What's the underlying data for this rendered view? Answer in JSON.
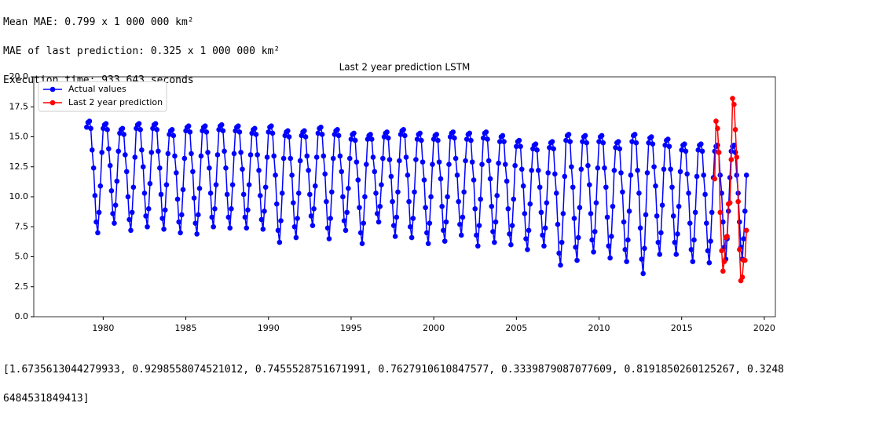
{
  "output_lines": [
    "Mean MAE: 0.799 x 1 000 000 km²",
    "MAE of last prediction: 0.325 x 1 000 000 km²",
    "Execution time: 933.643 seconds"
  ],
  "list_output": [
    "[1.6735613044279933, 0.9298558074521012, 0.7455528751671991, 0.7627910610847577, 0.3339879087077609, 0.8191850260125267, 0.3248",
    "6484531849413]"
  ],
  "chart_data": {
    "type": "line",
    "title": "Last 2 year prediction LSTM",
    "legend": "upper left",
    "grid": false,
    "xlim": [
      1975.8,
      2020.67
    ],
    "xticks": [
      1980,
      1985,
      1990,
      1995,
      2000,
      2005,
      2010,
      2015,
      2020
    ],
    "ylim": [
      0,
      20
    ],
    "yticks": [
      {
        "value": 0,
        "label": "0.0"
      },
      {
        "value": 2.5,
        "label": "2.5"
      },
      {
        "value": 5,
        "label": "5.0"
      },
      {
        "value": 7.5,
        "label": "7.5"
      },
      {
        "value": 10,
        "label": "10.0"
      },
      {
        "value": 12.5,
        "label": "12.5"
      },
      {
        "value": 15,
        "label": "15.0"
      },
      {
        "value": 17.5,
        "label": "17.5"
      },
      {
        "value": 20,
        "label": "20.0"
      }
    ],
    "series": [
      {
        "name": "Actual values",
        "color": "#0000ff",
        "x": [
          1979,
          1979.08,
          1979.17,
          1979.25,
          1979.33,
          1979.42,
          1979.5,
          1979.58,
          1979.67,
          1979.75,
          1979.83,
          1979.92,
          1980,
          1980.08,
          1980.17,
          1980.25,
          1980.33,
          1980.42,
          1980.5,
          1980.58,
          1980.67,
          1980.75,
          1980.83,
          1980.92,
          1981,
          1981.08,
          1981.17,
          1981.25,
          1981.33,
          1981.42,
          1981.5,
          1981.58,
          1981.67,
          1981.75,
          1981.83,
          1981.92,
          1982,
          1982.08,
          1982.17,
          1982.25,
          1982.33,
          1982.42,
          1982.5,
          1982.58,
          1982.67,
          1982.75,
          1982.83,
          1982.92,
          1983,
          1983.08,
          1983.17,
          1983.25,
          1983.33,
          1983.42,
          1983.5,
          1983.58,
          1983.67,
          1983.75,
          1983.83,
          1983.92,
          1984,
          1984.08,
          1984.17,
          1984.25,
          1984.33,
          1984.42,
          1984.5,
          1984.58,
          1984.67,
          1984.75,
          1984.83,
          1984.92,
          1985,
          1985.08,
          1985.17,
          1985.25,
          1985.33,
          1985.42,
          1985.5,
          1985.58,
          1985.67,
          1985.75,
          1985.83,
          1985.92,
          1986,
          1986.08,
          1986.17,
          1986.25,
          1986.33,
          1986.42,
          1986.5,
          1986.58,
          1986.67,
          1986.75,
          1986.83,
          1986.92,
          1987,
          1987.08,
          1987.17,
          1987.25,
          1987.33,
          1987.42,
          1987.5,
          1987.58,
          1987.67,
          1987.75,
          1987.83,
          1987.92,
          1988,
          1988.08,
          1988.17,
          1988.25,
          1988.33,
          1988.42,
          1988.5,
          1988.58,
          1988.67,
          1988.75,
          1988.83,
          1988.92,
          1989,
          1989.08,
          1989.17,
          1989.25,
          1989.33,
          1989.42,
          1989.5,
          1989.58,
          1989.67,
          1989.75,
          1989.83,
          1989.92,
          1990,
          1990.08,
          1990.17,
          1990.25,
          1990.33,
          1990.42,
          1990.5,
          1990.58,
          1990.67,
          1990.75,
          1990.83,
          1990.92,
          1991,
          1991.08,
          1991.17,
          1991.25,
          1991.33,
          1991.42,
          1991.5,
          1991.58,
          1991.67,
          1991.75,
          1991.83,
          1991.92,
          1992,
          1992.08,
          1992.17,
          1992.25,
          1992.33,
          1992.42,
          1992.5,
          1992.58,
          1992.67,
          1992.75,
          1992.83,
          1992.92,
          1993,
          1993.08,
          1993.17,
          1993.25,
          1993.33,
          1993.42,
          1993.5,
          1993.58,
          1993.67,
          1993.75,
          1993.83,
          1993.92,
          1994,
          1994.08,
          1994.17,
          1994.25,
          1994.33,
          1994.42,
          1994.5,
          1994.58,
          1994.67,
          1994.75,
          1994.83,
          1994.92,
          1995,
          1995.08,
          1995.17,
          1995.25,
          1995.33,
          1995.42,
          1995.5,
          1995.58,
          1995.67,
          1995.75,
          1995.83,
          1995.92,
          1996,
          1996.08,
          1996.17,
          1996.25,
          1996.33,
          1996.42,
          1996.5,
          1996.58,
          1996.67,
          1996.75,
          1996.83,
          1996.92,
          1997,
          1997.08,
          1997.17,
          1997.25,
          1997.33,
          1997.42,
          1997.5,
          1997.58,
          1997.67,
          1997.75,
          1997.83,
          1997.92,
          1998,
          1998.08,
          1998.17,
          1998.25,
          1998.33,
          1998.42,
          1998.5,
          1998.58,
          1998.67,
          1998.75,
          1998.83,
          1998.92,
          1999,
          1999.08,
          1999.17,
          1999.25,
          1999.33,
          1999.42,
          1999.5,
          1999.58,
          1999.67,
          1999.75,
          1999.83,
          1999.92,
          2000,
          2000.08,
          2000.17,
          2000.25,
          2000.33,
          2000.42,
          2000.5,
          2000.58,
          2000.67,
          2000.75,
          2000.83,
          2000.92,
          2001,
          2001.08,
          2001.17,
          2001.25,
          2001.33,
          2001.42,
          2001.5,
          2001.58,
          2001.67,
          2001.75,
          2001.83,
          2001.92,
          2002,
          2002.08,
          2002.17,
          2002.25,
          2002.33,
          2002.42,
          2002.5,
          2002.58,
          2002.67,
          2002.75,
          2002.83,
          2002.92,
          2003,
          2003.08,
          2003.17,
          2003.25,
          2003.33,
          2003.42,
          2003.5,
          2003.58,
          2003.67,
          2003.75,
          2003.83,
          2003.92,
          2004,
          2004.08,
          2004.17,
          2004.25,
          2004.33,
          2004.42,
          2004.5,
          2004.58,
          2004.67,
          2004.75,
          2004.83,
          2004.92,
          2005,
          2005.08,
          2005.17,
          2005.25,
          2005.33,
          2005.42,
          2005.5,
          2005.58,
          2005.67,
          2005.75,
          2005.83,
          2005.92,
          2006,
          2006.08,
          2006.17,
          2006.25,
          2006.33,
          2006.42,
          2006.5,
          2006.58,
          2006.67,
          2006.75,
          2006.83,
          2006.92,
          2007,
          2007.08,
          2007.17,
          2007.25,
          2007.33,
          2007.42,
          2007.5,
          2007.58,
          2007.67,
          2007.75,
          2007.83,
          2007.92,
          2008,
          2008.08,
          2008.17,
          2008.25,
          2008.33,
          2008.42,
          2008.5,
          2008.58,
          2008.67,
          2008.75,
          2008.83,
          2008.92,
          2009,
          2009.08,
          2009.17,
          2009.25,
          2009.33,
          2009.42,
          2009.5,
          2009.58,
          2009.67,
          2009.75,
          2009.83,
          2009.92,
          2010,
          2010.08,
          2010.17,
          2010.25,
          2010.33,
          2010.42,
          2010.5,
          2010.58,
          2010.67,
          2010.75,
          2010.83,
          2010.92,
          2011,
          2011.08,
          2011.17,
          2011.25,
          2011.33,
          2011.42,
          2011.5,
          2011.58,
          2011.67,
          2011.75,
          2011.83,
          2011.92,
          2012,
          2012.08,
          2012.17,
          2012.25,
          2012.33,
          2012.42,
          2012.5,
          2012.58,
          2012.67,
          2012.75,
          2012.83,
          2012.92,
          2013,
          2013.08,
          2013.17,
          2013.25,
          2013.33,
          2013.42,
          2013.5,
          2013.58,
          2013.67,
          2013.75,
          2013.83,
          2013.92,
          2014,
          2014.08,
          2014.17,
          2014.25,
          2014.33,
          2014.42,
          2014.5,
          2014.58,
          2014.67,
          2014.75,
          2014.83,
          2014.92,
          2015,
          2015.08,
          2015.17,
          2015.25,
          2015.33,
          2015.42,
          2015.5,
          2015.58,
          2015.67,
          2015.75,
          2015.83,
          2015.92,
          2016,
          2016.08,
          2016.17,
          2016.25,
          2016.33,
          2016.42,
          2016.5,
          2016.58,
          2016.67,
          2016.75,
          2016.83,
          2016.92,
          2017,
          2017.08,
          2017.17,
          2017.25,
          2017.33,
          2017.42,
          2017.5,
          2017.58,
          2017.67,
          2017.75,
          2017.83,
          2017.92,
          2018,
          2018.08,
          2018.17,
          2018.25,
          2018.33,
          2018.42,
          2018.5,
          2018.58,
          2018.67,
          2018.75,
          2018.83,
          2018.92
        ],
        "values": [
          15.8,
          16.2,
          16.3,
          15.7,
          13.9,
          12.4,
          10.1,
          7.9,
          7.0,
          8.7,
          10.9,
          13.7,
          15.7,
          16.0,
          16.1,
          15.6,
          14.0,
          12.6,
          10.5,
          8.6,
          7.8,
          9.3,
          11.3,
          13.8,
          15.3,
          15.6,
          15.7,
          15.2,
          13.5,
          12.1,
          10.0,
          8.1,
          7.2,
          8.7,
          10.8,
          13.3,
          15.7,
          16.0,
          16.1,
          15.6,
          13.9,
          12.5,
          10.3,
          8.4,
          7.5,
          9.0,
          11.1,
          13.7,
          15.7,
          16.0,
          16.1,
          15.6,
          13.8,
          12.4,
          10.2,
          8.2,
          7.3,
          8.9,
          11.0,
          13.6,
          15.2,
          15.5,
          15.6,
          15.1,
          13.4,
          12.0,
          9.8,
          7.9,
          7.0,
          8.5,
          10.6,
          13.2,
          15.5,
          15.8,
          15.9,
          15.4,
          13.6,
          12.1,
          9.9,
          7.8,
          6.9,
          8.5,
          10.7,
          13.4,
          15.5,
          15.8,
          15.9,
          15.4,
          13.7,
          12.4,
          10.3,
          8.3,
          7.5,
          9.0,
          11.0,
          13.5,
          15.6,
          15.9,
          16.0,
          15.5,
          13.8,
          12.4,
          10.2,
          8.3,
          7.4,
          9.0,
          11.0,
          13.6,
          15.5,
          15.8,
          15.9,
          15.4,
          13.7,
          12.3,
          10.2,
          8.3,
          7.4,
          8.9,
          11.0,
          13.5,
          15.3,
          15.6,
          15.7,
          15.2,
          13.5,
          12.2,
          10.1,
          8.1,
          7.3,
          8.8,
          10.8,
          13.3,
          15.4,
          15.8,
          15.9,
          15.3,
          13.4,
          11.8,
          9.4,
          7.2,
          6.2,
          8.0,
          10.3,
          13.2,
          15.1,
          15.4,
          15.5,
          15.0,
          13.2,
          11.8,
          9.5,
          7.5,
          6.6,
          8.2,
          10.3,
          13.0,
          15.1,
          15.4,
          15.5,
          15.0,
          13.4,
          12.2,
          10.2,
          8.4,
          7.6,
          9.0,
          10.9,
          13.3,
          15.3,
          15.7,
          15.8,
          15.2,
          13.4,
          11.9,
          9.6,
          7.4,
          6.5,
          8.2,
          10.4,
          13.2,
          15.2,
          15.5,
          15.6,
          15.1,
          13.4,
          12.1,
          10.0,
          8.0,
          7.2,
          8.7,
          10.7,
          13.2,
          14.8,
          15.2,
          15.3,
          14.7,
          12.9,
          11.4,
          9.1,
          7.0,
          6.1,
          7.8,
          10.0,
          12.7,
          14.8,
          15.1,
          15.2,
          14.8,
          13.3,
          12.1,
          10.3,
          8.6,
          7.9,
          9.2,
          11.0,
          13.2,
          15.0,
          15.3,
          15.4,
          14.9,
          13.1,
          11.7,
          9.6,
          7.6,
          6.7,
          8.3,
          10.4,
          13.0,
          15.2,
          15.5,
          15.6,
          15.1,
          13.3,
          11.8,
          9.6,
          7.5,
          6.6,
          8.2,
          10.4,
          13.1,
          14.8,
          15.2,
          15.3,
          14.7,
          12.9,
          11.4,
          9.1,
          7.0,
          6.1,
          7.8,
          10.0,
          12.7,
          14.8,
          15.1,
          15.2,
          14.7,
          12.9,
          11.5,
          9.2,
          7.2,
          6.3,
          7.9,
          10.0,
          12.7,
          15.0,
          15.3,
          15.4,
          14.9,
          13.2,
          11.8,
          9.6,
          7.7,
          6.8,
          8.3,
          10.4,
          13.0,
          14.8,
          15.2,
          15.3,
          14.7,
          12.9,
          11.4,
          9.0,
          6.8,
          5.9,
          7.6,
          9.8,
          12.7,
          14.9,
          15.3,
          15.4,
          14.8,
          13.0,
          11.5,
          9.2,
          7.1,
          6.2,
          7.9,
          10.1,
          12.8,
          14.6,
          15.0,
          15.1,
          14.6,
          12.7,
          11.3,
          9.0,
          6.9,
          6.0,
          7.6,
          9.8,
          12.6,
          14.2,
          14.6,
          14.7,
          14.2,
          12.3,
          10.9,
          8.6,
          6.5,
          5.6,
          7.2,
          9.4,
          12.2,
          14.0,
          14.3,
          14.4,
          13.9,
          12.2,
          10.8,
          8.7,
          6.8,
          5.9,
          7.4,
          9.5,
          12.0,
          14.1,
          14.5,
          14.6,
          14.0,
          11.9,
          10.3,
          7.7,
          5.3,
          4.3,
          6.2,
          8.6,
          11.7,
          14.7,
          15.1,
          15.2,
          14.6,
          12.5,
          10.8,
          8.2,
          5.8,
          4.7,
          6.6,
          9.1,
          12.3,
          14.6,
          15.0,
          15.1,
          14.5,
          12.6,
          11.0,
          8.6,
          6.4,
          5.4,
          7.1,
          9.5,
          12.4,
          14.6,
          15.0,
          15.1,
          14.5,
          12.4,
          10.8,
          8.3,
          5.9,
          4.9,
          6.7,
          9.2,
          12.2,
          14.1,
          14.5,
          14.6,
          14.0,
          12.0,
          10.4,
          7.9,
          5.6,
          4.6,
          6.4,
          8.8,
          11.8,
          14.6,
          15.1,
          15.2,
          14.5,
          12.2,
          10.3,
          7.4,
          4.8,
          3.6,
          5.7,
          8.5,
          12.0,
          14.5,
          14.9,
          15.0,
          14.4,
          12.5,
          10.9,
          8.4,
          6.2,
          5.2,
          7.0,
          9.3,
          12.3,
          14.3,
          14.7,
          14.8,
          14.2,
          12.3,
          10.8,
          8.4,
          6.2,
          5.2,
          6.9,
          9.2,
          12.1,
          13.9,
          14.3,
          14.4,
          13.8,
          11.9,
          10.3,
          7.8,
          5.6,
          4.6,
          6.4,
          8.7,
          11.7,
          13.9,
          14.3,
          14.4,
          13.8,
          11.8,
          10.2,
          7.8,
          5.5,
          4.5,
          6.3,
          8.7,
          11.6,
          13.8,
          14.2,
          14.3,
          13.7,
          11.8,
          10.3,
          7.9,
          5.8,
          4.8,
          6.5,
          8.8,
          11.6,
          13.8,
          14.2,
          14.3,
          13.7,
          11.8,
          10.3,
          7.9,
          5.8,
          4.8,
          6.5,
          8.8,
          11.8
        ]
      },
      {
        "name": "Last 2 year prediction",
        "color": "#ff0000",
        "x": [
          2017,
          2017.08,
          2017.17,
          2017.25,
          2017.33,
          2017.42,
          2017.5,
          2017.58,
          2017.67,
          2017.75,
          2017.83,
          2017.92,
          2018,
          2018.08,
          2018.17,
          2018.25,
          2018.33,
          2018.42,
          2018.5,
          2018.58,
          2018.67,
          2018.75,
          2018.83,
          2018.92
        ],
        "values": [
          11.5,
          16.3,
          15.7,
          13.7,
          8.7,
          5.5,
          3.8,
          4.6,
          6.6,
          6.7,
          9.4,
          9.5,
          13.1,
          18.2,
          17.7,
          15.6,
          13.3,
          9.6,
          5.6,
          3.0,
          3.3,
          4.7,
          4.7,
          7.2
        ]
      }
    ]
  }
}
